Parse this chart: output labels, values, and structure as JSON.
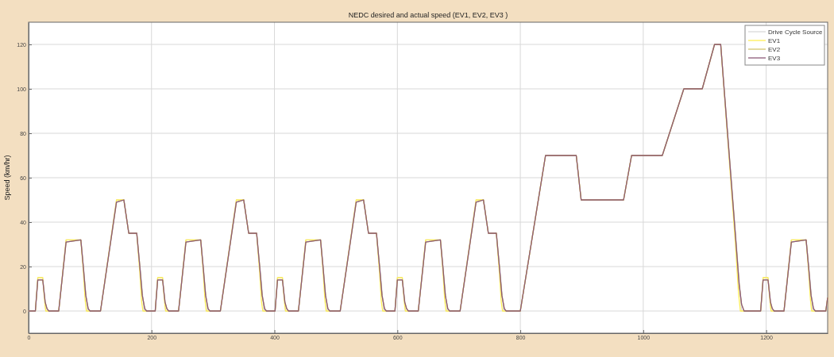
{
  "chart_data": {
    "type": "line",
    "title": "NEDC desired and actual speed (EV1, EV2, EV3 )",
    "ylabel": "Speed (km/hr)",
    "xlim": [
      0,
      1300
    ],
    "xticks": [
      0,
      200,
      400,
      600,
      800,
      1000,
      1200
    ],
    "ylim": [
      -10,
      130
    ],
    "yticks": [
      0,
      20,
      40,
      60,
      80,
      100,
      120
    ],
    "grid": true,
    "legend": "top right",
    "line_style": "solid",
    "marker": "none",
    "series": [
      {
        "name": "Drive Cycle Source",
        "color": "#d9d9d9",
        "x": [
          0,
          11,
          15,
          23,
          28,
          49,
          61,
          85,
          96,
          117,
          143,
          155,
          163,
          176,
          188,
          195,
          206,
          210,
          218,
          223,
          244,
          256,
          280,
          291,
          312,
          338,
          350,
          358,
          371,
          383,
          390,
          401,
          405,
          413,
          418,
          439,
          451,
          475,
          486,
          507,
          533,
          545,
          553,
          566,
          578,
          585,
          596,
          600,
          608,
          613,
          634,
          646,
          670,
          681,
          702,
          728,
          740,
          748,
          761,
          773,
          780,
          800,
          841,
          891,
          899,
          968,
          981,
          1031,
          1066,
          1096,
          1116,
          1126,
          1160,
          1180,
          1191,
          1195,
          1203,
          1208,
          1229,
          1241,
          1265,
          1276,
          1297,
          1300
        ],
        "values": [
          0,
          0,
          15,
          15,
          0,
          0,
          32,
          32,
          0,
          0,
          50,
          50,
          35,
          35,
          0,
          0,
          0,
          15,
          15,
          0,
          0,
          32,
          32,
          0,
          0,
          50,
          50,
          35,
          35,
          0,
          0,
          0,
          15,
          15,
          0,
          0,
          32,
          32,
          0,
          0,
          50,
          50,
          35,
          35,
          0,
          0,
          0,
          15,
          15,
          0,
          0,
          32,
          32,
          0,
          0,
          50,
          50,
          35,
          35,
          0,
          0,
          0,
          70,
          70,
          50,
          50,
          70,
          70,
          100,
          100,
          120,
          120,
          0,
          0,
          0,
          15,
          15,
          0,
          0,
          32,
          32,
          0,
          0,
          6
        ]
      },
      {
        "name": "EV1",
        "color": "#ffee55",
        "x": [
          0,
          11,
          15,
          23,
          25,
          27,
          28,
          49,
          61,
          85,
          89,
          92,
          94,
          117,
          143,
          155,
          163,
          176,
          181,
          184,
          186,
          195,
          206,
          210,
          218,
          220,
          222,
          223,
          244,
          256,
          280,
          284,
          287,
          289,
          312,
          338,
          350,
          358,
          371,
          376,
          379,
          381,
          390,
          401,
          405,
          413,
          415,
          417,
          418,
          439,
          451,
          475,
          479,
          482,
          484,
          507,
          533,
          545,
          553,
          566,
          571,
          574,
          576,
          585,
          596,
          600,
          608,
          610,
          612,
          613,
          634,
          646,
          670,
          674,
          677,
          679,
          702,
          728,
          740,
          748,
          761,
          766,
          769,
          771,
          780,
          800,
          841,
          891,
          899,
          968,
          981,
          1031,
          1066,
          1096,
          1116,
          1126,
          1150,
          1155,
          1158,
          1180,
          1191,
          1195,
          1203,
          1205,
          1207,
          1208,
          1229,
          1241,
          1265,
          1269,
          1272,
          1274,
          1297,
          1300
        ],
        "values": [
          0,
          0,
          15,
          15,
          8,
          2,
          0,
          0,
          32,
          32,
          18,
          5,
          0,
          0,
          50,
          50,
          35,
          35,
          17,
          4,
          0,
          0,
          0,
          15,
          15,
          8,
          2,
          0,
          0,
          32,
          32,
          18,
          5,
          0,
          0,
          50,
          50,
          35,
          35,
          17,
          4,
          0,
          0,
          0,
          15,
          15,
          8,
          2,
          0,
          0,
          32,
          32,
          18,
          5,
          0,
          0,
          50,
          50,
          35,
          35,
          17,
          4,
          0,
          0,
          0,
          15,
          15,
          8,
          2,
          0,
          0,
          32,
          32,
          18,
          5,
          0,
          0,
          50,
          50,
          35,
          35,
          17,
          4,
          0,
          0,
          0,
          70,
          70,
          50,
          50,
          70,
          70,
          100,
          100,
          120,
          120,
          30,
          8,
          0,
          0,
          0,
          15,
          15,
          8,
          2,
          0,
          0,
          32,
          32,
          18,
          5,
          0,
          0,
          6
        ]
      },
      {
        "name": "EV2",
        "color": "#d2c46e",
        "x": [
          0,
          11,
          15,
          23,
          25,
          27,
          30,
          33,
          49,
          61,
          85,
          89,
          93,
          97,
          100,
          117,
          143,
          155,
          163,
          176,
          181,
          185,
          189,
          192,
          195,
          206,
          210,
          218,
          220,
          222,
          225,
          228,
          244,
          256,
          280,
          284,
          288,
          292,
          295,
          312,
          338,
          350,
          358,
          371,
          376,
          380,
          384,
          387,
          390,
          401,
          405,
          413,
          415,
          417,
          420,
          423,
          439,
          451,
          475,
          479,
          483,
          487,
          490,
          507,
          533,
          545,
          553,
          566,
          571,
          575,
          579,
          582,
          585,
          596,
          600,
          608,
          610,
          612,
          615,
          618,
          634,
          646,
          670,
          674,
          678,
          682,
          685,
          702,
          728,
          740,
          748,
          761,
          766,
          770,
          774,
          777,
          780,
          800,
          841,
          891,
          899,
          968,
          981,
          1031,
          1066,
          1096,
          1116,
          1126,
          1150,
          1156,
          1160,
          1164,
          1180,
          1191,
          1195,
          1203,
          1205,
          1207,
          1210,
          1213,
          1229,
          1241,
          1265,
          1269,
          1273,
          1277,
          1280,
          1297,
          1300
        ],
        "values": [
          0,
          0,
          14,
          14,
          9,
          4,
          1,
          0,
          0,
          31,
          32,
          20,
          7,
          1,
          0,
          0,
          49,
          50,
          35,
          35,
          20,
          7,
          1,
          0,
          0,
          0,
          14,
          14,
          9,
          4,
          1,
          0,
          0,
          31,
          32,
          20,
          7,
          1,
          0,
          0,
          49,
          50,
          35,
          35,
          20,
          7,
          1,
          0,
          0,
          0,
          14,
          14,
          9,
          4,
          1,
          0,
          0,
          31,
          32,
          20,
          7,
          1,
          0,
          0,
          49,
          50,
          35,
          35,
          20,
          7,
          1,
          0,
          0,
          0,
          14,
          14,
          9,
          4,
          1,
          0,
          0,
          31,
          32,
          20,
          7,
          1,
          0,
          0,
          49,
          50,
          35,
          35,
          20,
          7,
          1,
          0,
          0,
          0,
          70,
          70,
          50,
          50,
          70,
          70,
          100,
          100,
          120,
          120,
          34,
          12,
          3,
          0,
          0,
          0,
          14,
          14,
          9,
          4,
          1,
          0,
          0,
          31,
          32,
          20,
          7,
          1,
          0,
          0,
          6
        ]
      },
      {
        "name": "EV3",
        "color": "#8c5a78",
        "x": [
          0,
          11,
          15,
          23,
          25,
          27,
          30,
          33,
          49,
          61,
          85,
          89,
          93,
          97,
          100,
          117,
          143,
          155,
          163,
          176,
          181,
          185,
          189,
          192,
          195,
          206,
          210,
          218,
          220,
          222,
          225,
          228,
          244,
          256,
          280,
          284,
          288,
          292,
          295,
          312,
          338,
          350,
          358,
          371,
          376,
          380,
          384,
          387,
          390,
          401,
          405,
          413,
          415,
          417,
          420,
          423,
          439,
          451,
          475,
          479,
          483,
          487,
          490,
          507,
          533,
          545,
          553,
          566,
          571,
          575,
          579,
          582,
          585,
          596,
          600,
          608,
          610,
          612,
          615,
          618,
          634,
          646,
          670,
          674,
          678,
          682,
          685,
          702,
          728,
          740,
          748,
          761,
          766,
          770,
          774,
          777,
          780,
          800,
          841,
          891,
          899,
          968,
          981,
          1031,
          1066,
          1096,
          1116,
          1126,
          1150,
          1156,
          1160,
          1164,
          1180,
          1191,
          1195,
          1203,
          1205,
          1207,
          1210,
          1213,
          1229,
          1241,
          1265,
          1269,
          1273,
          1277,
          1280,
          1297,
          1300
        ],
        "values": [
          0,
          0,
          14,
          14,
          9,
          4,
          1,
          0,
          0,
          31,
          32,
          20,
          7,
          1,
          0,
          0,
          49,
          50,
          35,
          35,
          20,
          7,
          1,
          0,
          0,
          0,
          14,
          14,
          9,
          4,
          1,
          0,
          0,
          31,
          32,
          20,
          7,
          1,
          0,
          0,
          49,
          50,
          35,
          35,
          20,
          7,
          1,
          0,
          0,
          0,
          14,
          14,
          9,
          4,
          1,
          0,
          0,
          31,
          32,
          20,
          7,
          1,
          0,
          0,
          49,
          50,
          35,
          35,
          20,
          7,
          1,
          0,
          0,
          0,
          14,
          14,
          9,
          4,
          1,
          0,
          0,
          31,
          32,
          20,
          7,
          1,
          0,
          0,
          49,
          50,
          35,
          35,
          20,
          7,
          1,
          0,
          0,
          0,
          70,
          70,
          50,
          50,
          70,
          70,
          100,
          100,
          120,
          120,
          34,
          12,
          3,
          0,
          0,
          0,
          14,
          14,
          9,
          4,
          1,
          0,
          0,
          31,
          32,
          20,
          7,
          1,
          0,
          0,
          6
        ]
      }
    ]
  }
}
